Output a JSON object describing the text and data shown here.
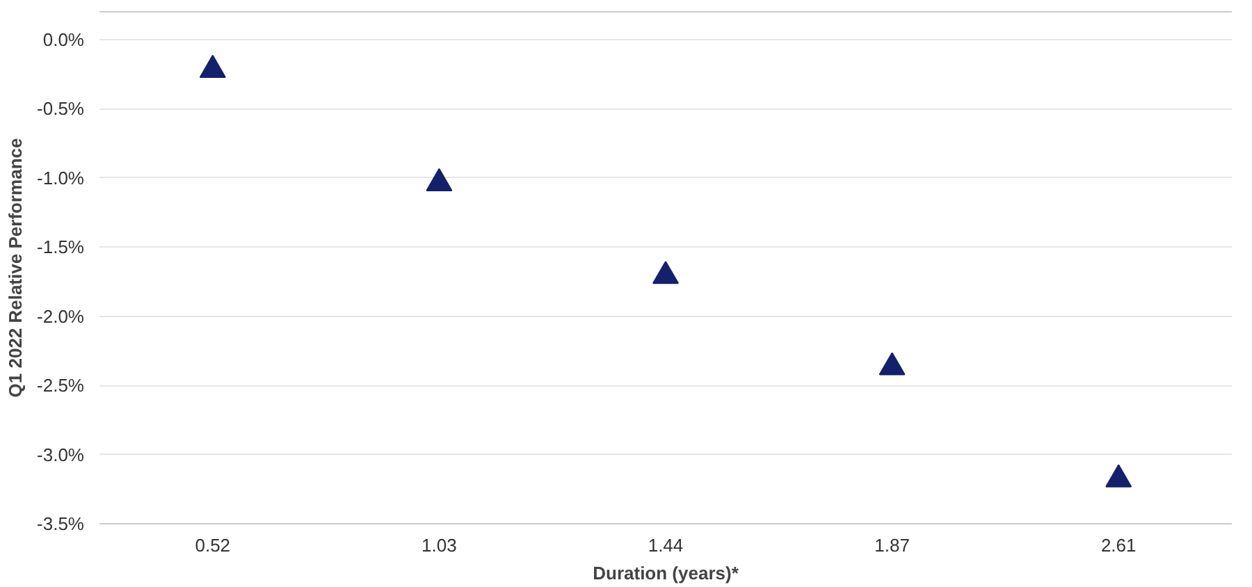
{
  "chart_data": {
    "type": "scatter",
    "xlabel": "Duration (years)*",
    "ylabel": "Q1 2022 Relative Performance",
    "categories": [
      "0.52",
      "1.03",
      "1.44",
      "1.87",
      "2.61"
    ],
    "series": [
      {
        "color": "#13206b",
        "values": [
          -0.22,
          -1.04,
          -1.71,
          -2.37,
          -3.18
        ]
      }
    ],
    "ylim": [
      -3.5,
      0.2
    ],
    "yticks": [
      {
        "value": 0,
        "label": "0.0%"
      },
      {
        "value": -0.5,
        "label": "-0.5%"
      },
      {
        "value": -1,
        "label": "-1.0%"
      },
      {
        "value": -1.5,
        "label": "-1.5%"
      },
      {
        "value": -2,
        "label": "-2.0%"
      },
      {
        "value": -2.5,
        "label": "-2.5%"
      },
      {
        "value": -3,
        "label": "-3.0%"
      },
      {
        "value": -3.5,
        "label": "-3.5%"
      }
    ],
    "grid": "y",
    "marker": "triangle"
  }
}
